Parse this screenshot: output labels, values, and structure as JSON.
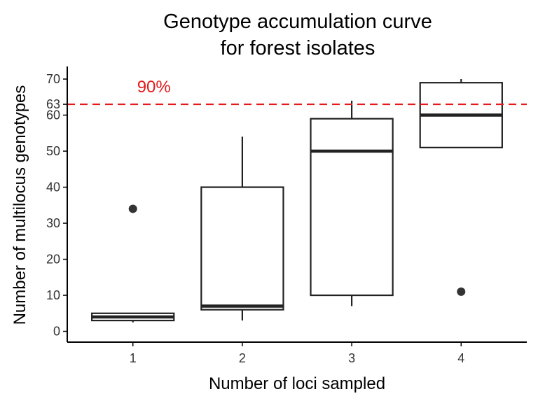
{
  "chart_data": {
    "type": "box",
    "title_lines": [
      "Genotype accumulation curve",
      "for forest isolates"
    ],
    "xlabel": "Number of loci sampled",
    "ylabel": "Number of multilocus genotypes",
    "categories": [
      "1",
      "2",
      "3",
      "4"
    ],
    "y_ticks": [
      0,
      10,
      20,
      30,
      40,
      50,
      60,
      63,
      70
    ],
    "ylim": [
      -3,
      73.5
    ],
    "boxes": [
      {
        "x": "1",
        "whisker_low": 2.5,
        "q1": 3,
        "median": 4,
        "q3": 5,
        "whisker_high": 5,
        "outliers": [
          34
        ]
      },
      {
        "x": "2",
        "whisker_low": 3,
        "q1": 6,
        "median": 7,
        "q3": 40,
        "whisker_high": 54,
        "outliers": []
      },
      {
        "x": "3",
        "whisker_low": 7,
        "q1": 10,
        "median": 50,
        "q3": 59,
        "whisker_high": 64,
        "outliers": []
      },
      {
        "x": "4",
        "whisker_low": 51,
        "q1": 51,
        "median": 60,
        "q3": 69,
        "whisker_high": 70,
        "outliers": [
          11
        ]
      }
    ],
    "reference_line": {
      "y": 63,
      "label": "90%",
      "color": "#e41a1c",
      "style": "dashed"
    },
    "grid": false,
    "box_stroke": "#222222",
    "outlier_color": "#333333"
  }
}
